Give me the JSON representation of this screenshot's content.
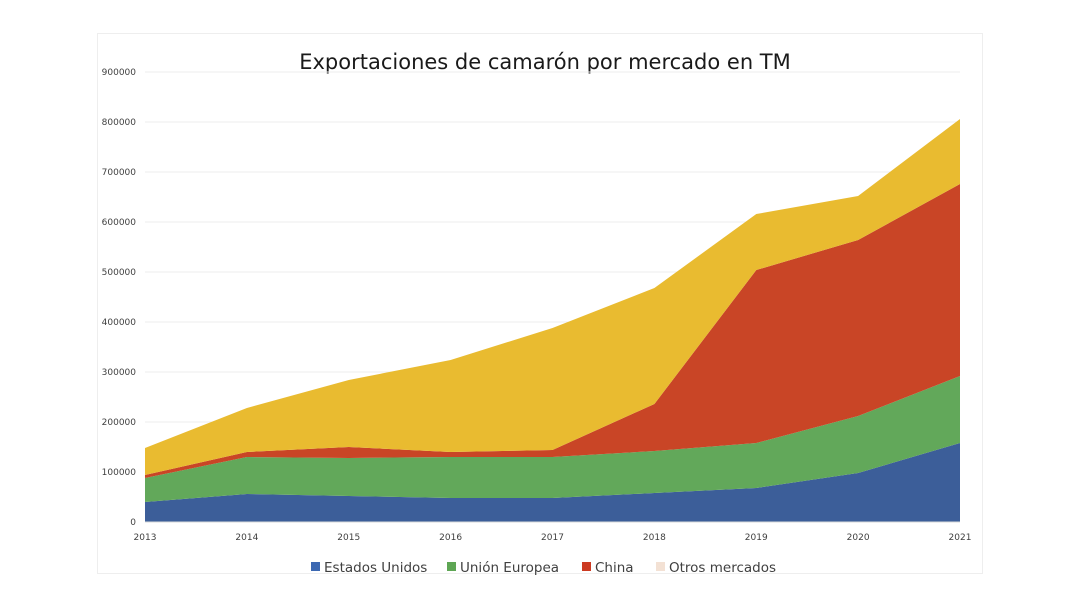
{
  "chart_data": {
    "type": "area",
    "stacked": true,
    "title": "Exportaciones de camarón por mercado en TM",
    "xlabel": "",
    "ylabel": "",
    "categories": [
      "2013",
      "2014",
      "2015",
      "2016",
      "2017",
      "2018",
      "2019",
      "2020",
      "2021"
    ],
    "ylim": [
      0,
      900000
    ],
    "yticks": [
      0,
      100000,
      200000,
      300000,
      400000,
      500000,
      600000,
      700000,
      800000,
      900000
    ],
    "ytick_labels": [
      "0",
      "100000",
      "200000",
      "300000",
      "400000",
      "500000",
      "600000",
      "700000",
      "800000",
      "900000"
    ],
    "grid": true,
    "legend_position": "bottom",
    "series": [
      {
        "name": "Estados Unidos",
        "color": "#3c5e99",
        "legend_color": "#3c68b2",
        "values": [
          40000,
          56000,
          52000,
          48000,
          48000,
          58000,
          68000,
          98000,
          158000
        ]
      },
      {
        "name": "Unión Europea",
        "color": "#62a85a",
        "legend_color": "#5ea654",
        "values": [
          48000,
          74000,
          76000,
          82000,
          82000,
          84000,
          90000,
          114000,
          134000
        ]
      },
      {
        "name": "China",
        "color": "#c94526",
        "legend_color": "#cc3a22",
        "values": [
          6000,
          10000,
          22000,
          10000,
          14000,
          94000,
          346000,
          352000,
          384000
        ]
      },
      {
        "name": "Otros mercados",
        "color": "#e9bb30",
        "legend_color": "#f3e1d4",
        "values": [
          54000,
          88000,
          134000,
          184000,
          244000,
          232000,
          112000,
          88000,
          130000
        ]
      }
    ]
  }
}
